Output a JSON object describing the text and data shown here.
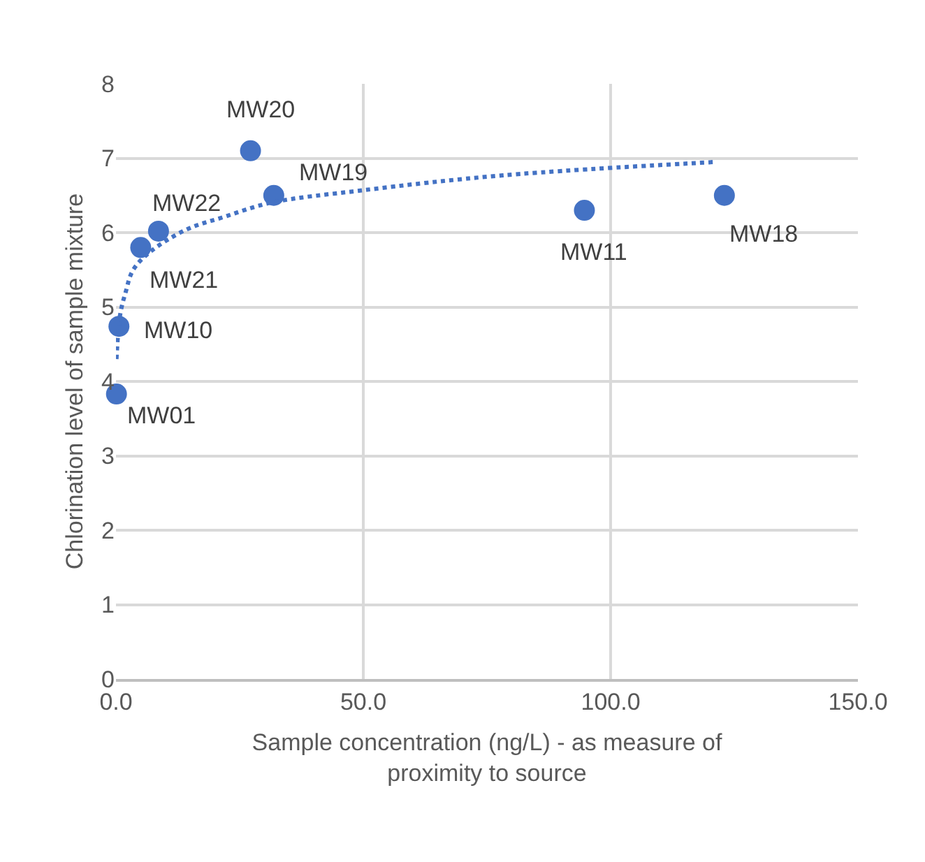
{
  "chart_data": {
    "type": "scatter",
    "xlabel": "Sample concentration (ng/L) - as measure of proximity to source",
    "ylabel": "Chlorination level of sample mixture",
    "xlim": [
      0,
      150
    ],
    "xticks": [
      {
        "value": 0,
        "label": "0.0"
      },
      {
        "value": 50,
        "label": "50.0"
      },
      {
        "value": 100,
        "label": "100.0"
      },
      {
        "value": 150,
        "label": "150.0"
      }
    ],
    "ylim": [
      0,
      8
    ],
    "yticks": [
      0,
      1,
      2,
      3,
      4,
      5,
      6,
      7,
      8
    ],
    "grid": true,
    "marker": "circle",
    "series": [
      {
        "color": "#4472c4",
        "x": [
          0.1,
          0.6,
          5.0,
          8.6,
          27.2,
          31.9,
          94.7,
          123.0
        ],
        "values": [
          3.83,
          4.74,
          5.8,
          6.02,
          7.1,
          6.5,
          6.3,
          6.5
        ]
      },
      {
        "type": "line",
        "color": "#4472c4",
        "line_style": "dotted",
        "marker": "none",
        "x": [
          0.1,
          0.85,
          2.0,
          3.4,
          6.7,
          14.2,
          21.8,
          31.2,
          50,
          78.2,
          121.4
        ],
        "values": [
          4.3,
          4.9,
          5.21,
          5.49,
          5.73,
          6.04,
          6.21,
          6.4,
          6.57,
          6.77,
          6.95
        ]
      }
    ],
    "annotations": [
      {
        "text": "MW01",
        "x": 0.1,
        "y": 3.83
      },
      {
        "text": "MW10",
        "x": 0.6,
        "y": 4.74
      },
      {
        "text": "MW21",
        "x": 5.0,
        "y": 5.8
      },
      {
        "text": "MW22",
        "x": 8.6,
        "y": 6.02
      },
      {
        "text": "MW20",
        "x": 27.2,
        "y": 7.1
      },
      {
        "text": "MW19",
        "x": 31.9,
        "y": 6.5
      },
      {
        "text": "MW11",
        "x": 94.7,
        "y": 6.3
      },
      {
        "text": "MW18",
        "x": 123.0,
        "y": 6.5
      }
    ]
  }
}
